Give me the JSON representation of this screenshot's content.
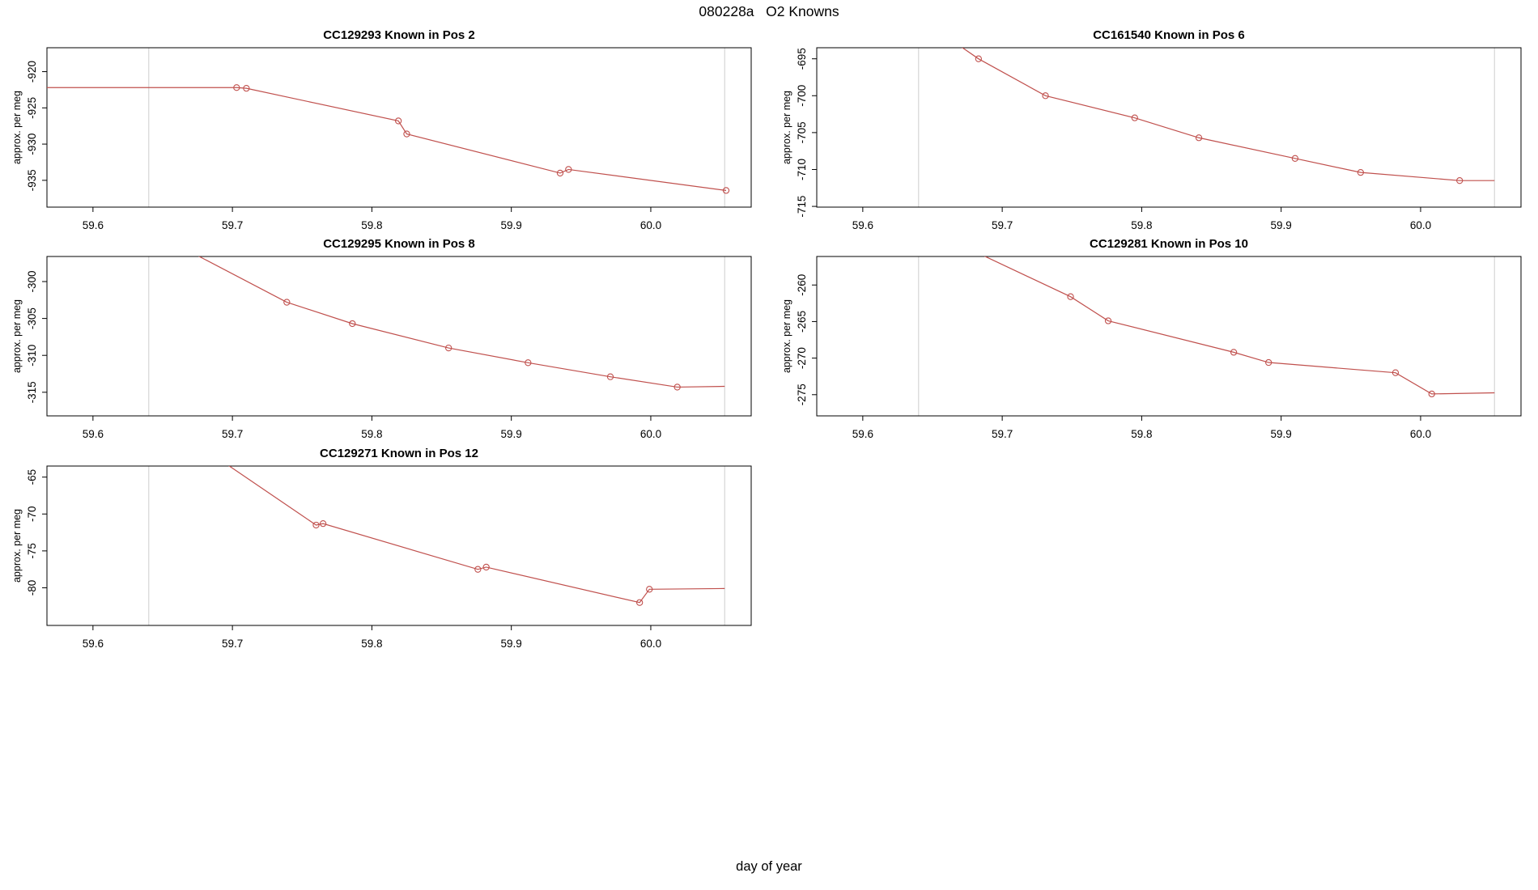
{
  "page": {
    "title": "080228a   O2 Knowns",
    "xlabel": "day of year"
  },
  "style": {
    "line_color": "#c0504d",
    "marker_color": "#c0504d",
    "ref_line_color": "#d6d6d6",
    "axis_color": "#000000",
    "background": "#ffffff"
  },
  "chart_data": [
    {
      "type": "line",
      "title": "CC129293    Known in Pos 2",
      "ylabel": "approx. per meg",
      "xlim": [
        59.567,
        60.072
      ],
      "ylim": [
        -938.7,
        -916.7
      ],
      "xticks": [
        59.6,
        59.7,
        59.8,
        59.9,
        60.0
      ],
      "xtick_labels": [
        "59.6",
        "59.7",
        "59.8",
        "59.9",
        "60.0"
      ],
      "yticks": [
        -920,
        -925,
        -930,
        -935
      ],
      "ytick_labels": [
        "-920",
        "-925",
        "-930",
        "-935"
      ],
      "ref_x": [
        59.64,
        60.053
      ],
      "line": [
        [
          59.567,
          -922.2
        ],
        [
          59.703,
          -922.2
        ],
        [
          59.71,
          -922.3
        ],
        [
          59.819,
          -926.8
        ],
        [
          59.825,
          -928.6
        ],
        [
          59.935,
          -934.0
        ],
        [
          59.941,
          -933.5
        ],
        [
          60.054,
          -936.4
        ]
      ],
      "points": [
        [
          59.703,
          -922.2
        ],
        [
          59.71,
          -922.3
        ],
        [
          59.819,
          -926.8
        ],
        [
          59.825,
          -928.6
        ],
        [
          59.935,
          -934.0
        ],
        [
          59.941,
          -933.5
        ],
        [
          60.054,
          -936.4
        ]
      ]
    },
    {
      "type": "line",
      "title": "CC161540    Known in Pos 6",
      "ylabel": "approx. per meg",
      "xlim": [
        59.567,
        60.072
      ],
      "ylim": [
        -715.1,
        -693.5
      ],
      "xticks": [
        59.6,
        59.7,
        59.8,
        59.9,
        60.0
      ],
      "xtick_labels": [
        "59.6",
        "59.7",
        "59.8",
        "59.9",
        "60.0"
      ],
      "yticks": [
        -695,
        -700,
        -705,
        -710,
        -715
      ],
      "ytick_labels": [
        "-695",
        "-700",
        "-705",
        "-710",
        "-715"
      ],
      "ref_x": [
        59.64,
        60.053
      ],
      "line": [
        [
          59.66,
          -692.0
        ],
        [
          59.683,
          -695.0
        ],
        [
          59.731,
          -700.0
        ],
        [
          59.795,
          -703.0
        ],
        [
          59.841,
          -705.7
        ],
        [
          59.91,
          -708.5
        ],
        [
          59.957,
          -710.4
        ],
        [
          60.028,
          -711.5
        ],
        [
          60.053,
          -711.5
        ]
      ],
      "points": [
        [
          59.683,
          -695.0
        ],
        [
          59.731,
          -700.0
        ],
        [
          59.795,
          -703.0
        ],
        [
          59.841,
          -705.7
        ],
        [
          59.91,
          -708.5
        ],
        [
          59.957,
          -710.4
        ],
        [
          60.028,
          -711.5
        ]
      ]
    },
    {
      "type": "line",
      "title": "CC129295    Known in Pos 8",
      "ylabel": "approx. per meg",
      "xlim": [
        59.567,
        60.072
      ],
      "ylim": [
        -318.2,
        -296.6
      ],
      "xticks": [
        59.6,
        59.7,
        59.8,
        59.9,
        60.0
      ],
      "xtick_labels": [
        "59.6",
        "59.7",
        "59.8",
        "59.9",
        "60.0"
      ],
      "yticks": [
        -300,
        -305,
        -310,
        -315
      ],
      "ytick_labels": [
        "-300",
        "-305",
        "-310",
        "-315"
      ],
      "ref_x": [
        59.64,
        60.053
      ],
      "line": [
        [
          59.66,
          -295.0
        ],
        [
          59.739,
          -302.8
        ],
        [
          59.786,
          -305.7
        ],
        [
          59.855,
          -309.0
        ],
        [
          59.912,
          -311.0
        ],
        [
          59.971,
          -312.9
        ],
        [
          60.019,
          -314.3
        ],
        [
          60.053,
          -314.2
        ]
      ],
      "points": [
        [
          59.739,
          -302.8
        ],
        [
          59.786,
          -305.7
        ],
        [
          59.855,
          -309.0
        ],
        [
          59.912,
          -311.0
        ],
        [
          59.971,
          -312.9
        ],
        [
          60.019,
          -314.3
        ]
      ]
    },
    {
      "type": "line",
      "title": "CC129281    Known in Pos 10",
      "ylabel": "approx. per meg",
      "xlim": [
        59.567,
        60.072
      ],
      "ylim": [
        -277.9,
        -256.1
      ],
      "xticks": [
        59.6,
        59.7,
        59.8,
        59.9,
        60.0
      ],
      "xtick_labels": [
        "59.6",
        "59.7",
        "59.8",
        "59.9",
        "60.0"
      ],
      "yticks": [
        -260,
        -265,
        -270,
        -275
      ],
      "ytick_labels": [
        "-260",
        "-265",
        "-270",
        "-275"
      ],
      "ref_x": [
        59.64,
        60.053
      ],
      "line": [
        [
          59.67,
          -254.5
        ],
        [
          59.749,
          -261.6
        ],
        [
          59.776,
          -264.9
        ],
        [
          59.866,
          -269.2
        ],
        [
          59.891,
          -270.6
        ],
        [
          59.982,
          -272.0
        ],
        [
          60.008,
          -274.9
        ],
        [
          60.053,
          -274.75
        ]
      ],
      "points": [
        [
          59.749,
          -261.6
        ],
        [
          59.776,
          -264.9
        ],
        [
          59.866,
          -269.2
        ],
        [
          59.891,
          -270.6
        ],
        [
          59.982,
          -272.0
        ],
        [
          60.008,
          -274.9
        ]
      ]
    },
    {
      "type": "line",
      "title": "CC129271    Known in Pos 12",
      "ylabel": "approx. per meg",
      "xlim": [
        59.567,
        60.072
      ],
      "ylim": [
        -85.1,
        -63.5
      ],
      "xticks": [
        59.6,
        59.7,
        59.8,
        59.9,
        60.0
      ],
      "xtick_labels": [
        "59.6",
        "59.7",
        "59.8",
        "59.9",
        "60.0"
      ],
      "yticks": [
        -65,
        -70,
        -75,
        -80
      ],
      "ytick_labels": [
        "-65",
        "-70",
        "-75",
        "-80"
      ],
      "ref_x": [
        59.64,
        60.053
      ],
      "line": [
        [
          59.69,
          -62.5
        ],
        [
          59.76,
          -71.5
        ],
        [
          59.765,
          -71.3
        ],
        [
          59.876,
          -77.5
        ],
        [
          59.882,
          -77.2
        ],
        [
          59.992,
          -82.0
        ],
        [
          59.999,
          -80.2
        ],
        [
          60.053,
          -80.1
        ]
      ],
      "points": [
        [
          59.76,
          -71.5
        ],
        [
          59.765,
          -71.3
        ],
        [
          59.876,
          -77.5
        ],
        [
          59.882,
          -77.2
        ],
        [
          59.992,
          -82.0
        ],
        [
          59.999,
          -80.2
        ]
      ]
    }
  ]
}
